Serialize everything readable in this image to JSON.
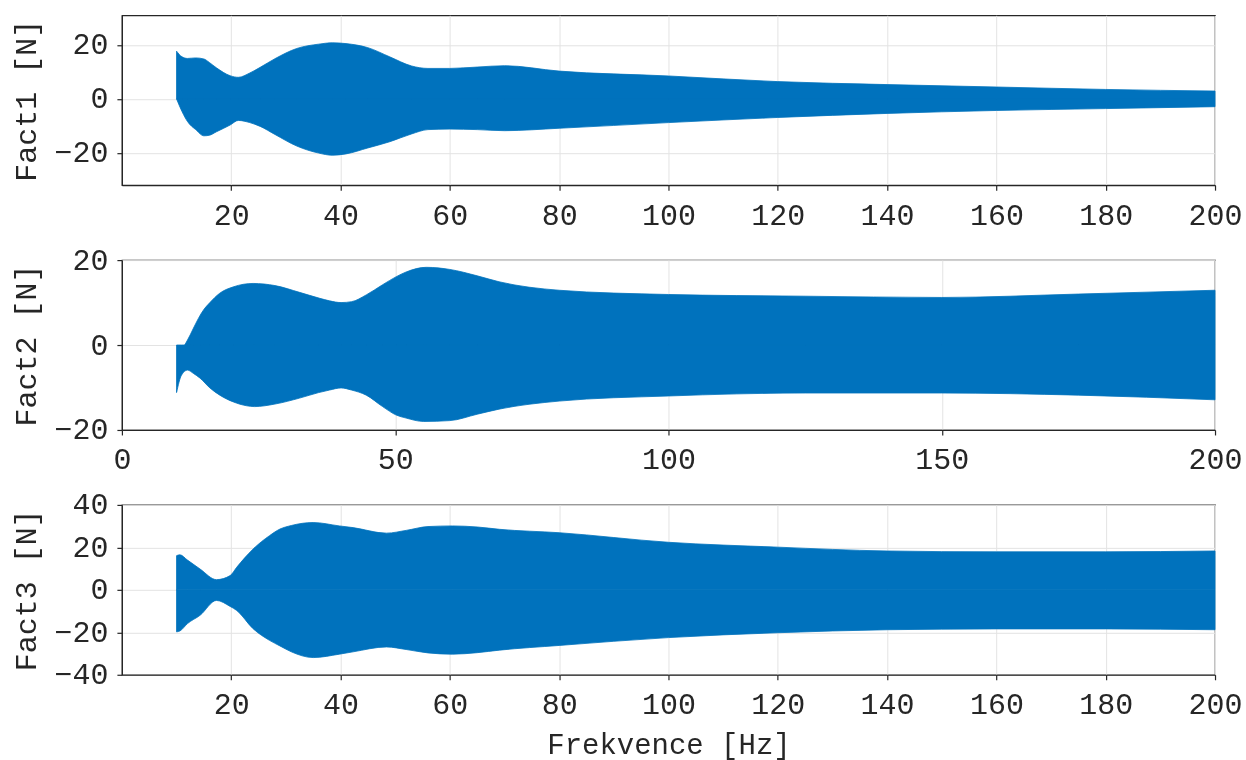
{
  "chart_data": [
    {
      "type": "area",
      "x": [
        10,
        11,
        12,
        13.5,
        15,
        16,
        17.3,
        19.8,
        21.3,
        23.4,
        25.3,
        28,
        32,
        36,
        38.5,
        41,
        45,
        49,
        53,
        56,
        60,
        65,
        70,
        80,
        100,
        120,
        140,
        160,
        180,
        200
      ],
      "series": [
        {
          "color": "#0072bd",
          "values": [
            17.7,
            15.6,
            15.0,
            15.2,
            14.8,
            13.5,
            11.5,
            8.6,
            8.0,
            9.6,
            11.7,
            14.9,
            18.7,
            20.3,
            20.8,
            20.5,
            19.0,
            15.6,
            12.2,
            11.3,
            11.3,
            11.8,
            12.3,
            10.3,
            8.5,
            6.4,
            5.3,
            4.4,
            3.5,
            2.9
          ]
        },
        {
          "color": "#0072bd",
          "values": [
            0,
            -4.7,
            -8.4,
            -11.4,
            -13.7,
            -13.5,
            -12.2,
            -9.7,
            -8.0,
            -8.8,
            -10.2,
            -13.2,
            -17.5,
            -20.1,
            -20.9,
            -20.4,
            -18.2,
            -15.9,
            -13.0,
            -11.4,
            -11.2,
            -11.4,
            -11.8,
            -10.9,
            -8.8,
            -6.9,
            -5.4,
            -4.3,
            -3.6,
            -2.9
          ]
        }
      ],
      "xlim": [
        0,
        200
      ],
      "xticks": [
        20,
        40,
        60,
        80,
        100,
        120,
        140,
        160,
        180,
        200
      ],
      "ylim": [
        -32,
        31
      ],
      "yticks": [
        -20,
        0,
        20
      ],
      "ylabel": "Fact1 [N]",
      "grid": true
    },
    {
      "type": "area",
      "x": [
        10,
        10.9,
        12,
        13.1,
        14.3,
        16.1,
        17.9,
        20.4,
        22.8,
        24.3,
        28,
        32.5,
        36,
        38,
        40.1,
        42,
        44.7,
        47.7,
        50.2,
        52,
        55.2,
        60,
        65,
        69,
        80,
        100,
        125,
        150,
        175,
        200
      ],
      "series": [
        {
          "color": "#0072bd",
          "x": [
            11.5,
            12.5,
            13.1,
            14.9,
            16.1,
            17.9,
            20.4,
            24.0,
            28,
            32.5,
            36.2,
            38,
            40.1,
            42,
            44.7,
            47.7,
            50.2,
            52,
            55.7,
            60,
            65,
            69,
            80,
            100,
            125,
            150,
            175,
            200
          ],
          "values": [
            0,
            2.4,
            4.0,
            8.2,
            10.0,
            12.2,
            13.7,
            14.5,
            14.0,
            12.4,
            11.0,
            10.4,
            10.0,
            10.2,
            11.8,
            14.2,
            16.1,
            17.2,
            18.3,
            17.8,
            16.3,
            14.9,
            12.9,
            11.9,
            11.5,
            11.2,
            12.0,
            12.9
          ]
        },
        {
          "color": "#0072bd",
          "values": [
            -11.2,
            -7.1,
            -5.9,
            -6.7,
            -7.8,
            -10.1,
            -11.8,
            -13.4,
            -14.3,
            -14.5,
            -13.9,
            -12.5,
            -11.2,
            -10.6,
            -10.1,
            -10.6,
            -11.8,
            -14.5,
            -16.5,
            -17.2,
            -18.0,
            -17.8,
            -16.3,
            -15.1,
            -13.2,
            -12.0,
            -11.3,
            -11.3,
            -11.8,
            -12.9
          ]
        }
      ],
      "xlim": [
        0,
        200
      ],
      "xticks": [
        0,
        50,
        100,
        150,
        200
      ],
      "ylim": [
        -20,
        20
      ],
      "yticks": [
        -20,
        0,
        20
      ],
      "ylabel": "Fact2 [N]",
      "grid": true
    },
    {
      "type": "area",
      "x": [
        10,
        10.6,
        12,
        14.3,
        17.3,
        19.8,
        21,
        24,
        27,
        28.9,
        31,
        35,
        39.8,
        42.3,
        48.4,
        52,
        56,
        60.5,
        65,
        69.1,
        80,
        100,
        120,
        140,
        160,
        180,
        200
      ],
      "series": [
        {
          "color": "#0072bd",
          "values": [
            16.1,
            16.5,
            14.0,
            9.8,
            4.8,
            6.7,
            10.6,
            19.2,
            25.5,
            28.6,
            30.3,
            31.7,
            30.1,
            29.3,
            26.7,
            28.0,
            29.8,
            30.1,
            29.6,
            28.5,
            26.9,
            22.4,
            20.1,
            18.3,
            17.9,
            17.9,
            18.3
          ]
        },
        {
          "color": "#0072bd",
          "values": [
            -19.8,
            -19.4,
            -15.9,
            -12.0,
            -5.0,
            -7.8,
            -9.7,
            -18.3,
            -23.8,
            -26.4,
            -29.2,
            -31.9,
            -30.3,
            -29.2,
            -26.9,
            -28.1,
            -29.7,
            -30.3,
            -29.6,
            -28.4,
            -26.2,
            -22.5,
            -20.2,
            -18.8,
            -18.4,
            -18.4,
            -18.8
          ]
        }
      ],
      "xlim": [
        0,
        200
      ],
      "xticks": [
        20,
        40,
        60,
        80,
        100,
        120,
        140,
        160,
        180,
        200
      ],
      "ylim": [
        -40,
        40
      ],
      "yticks": [
        -40,
        -20,
        0,
        20,
        40
      ],
      "xlabel": "Frekvence [Hz]",
      "ylabel": "Fact3 [N]",
      "grid": true
    }
  ]
}
